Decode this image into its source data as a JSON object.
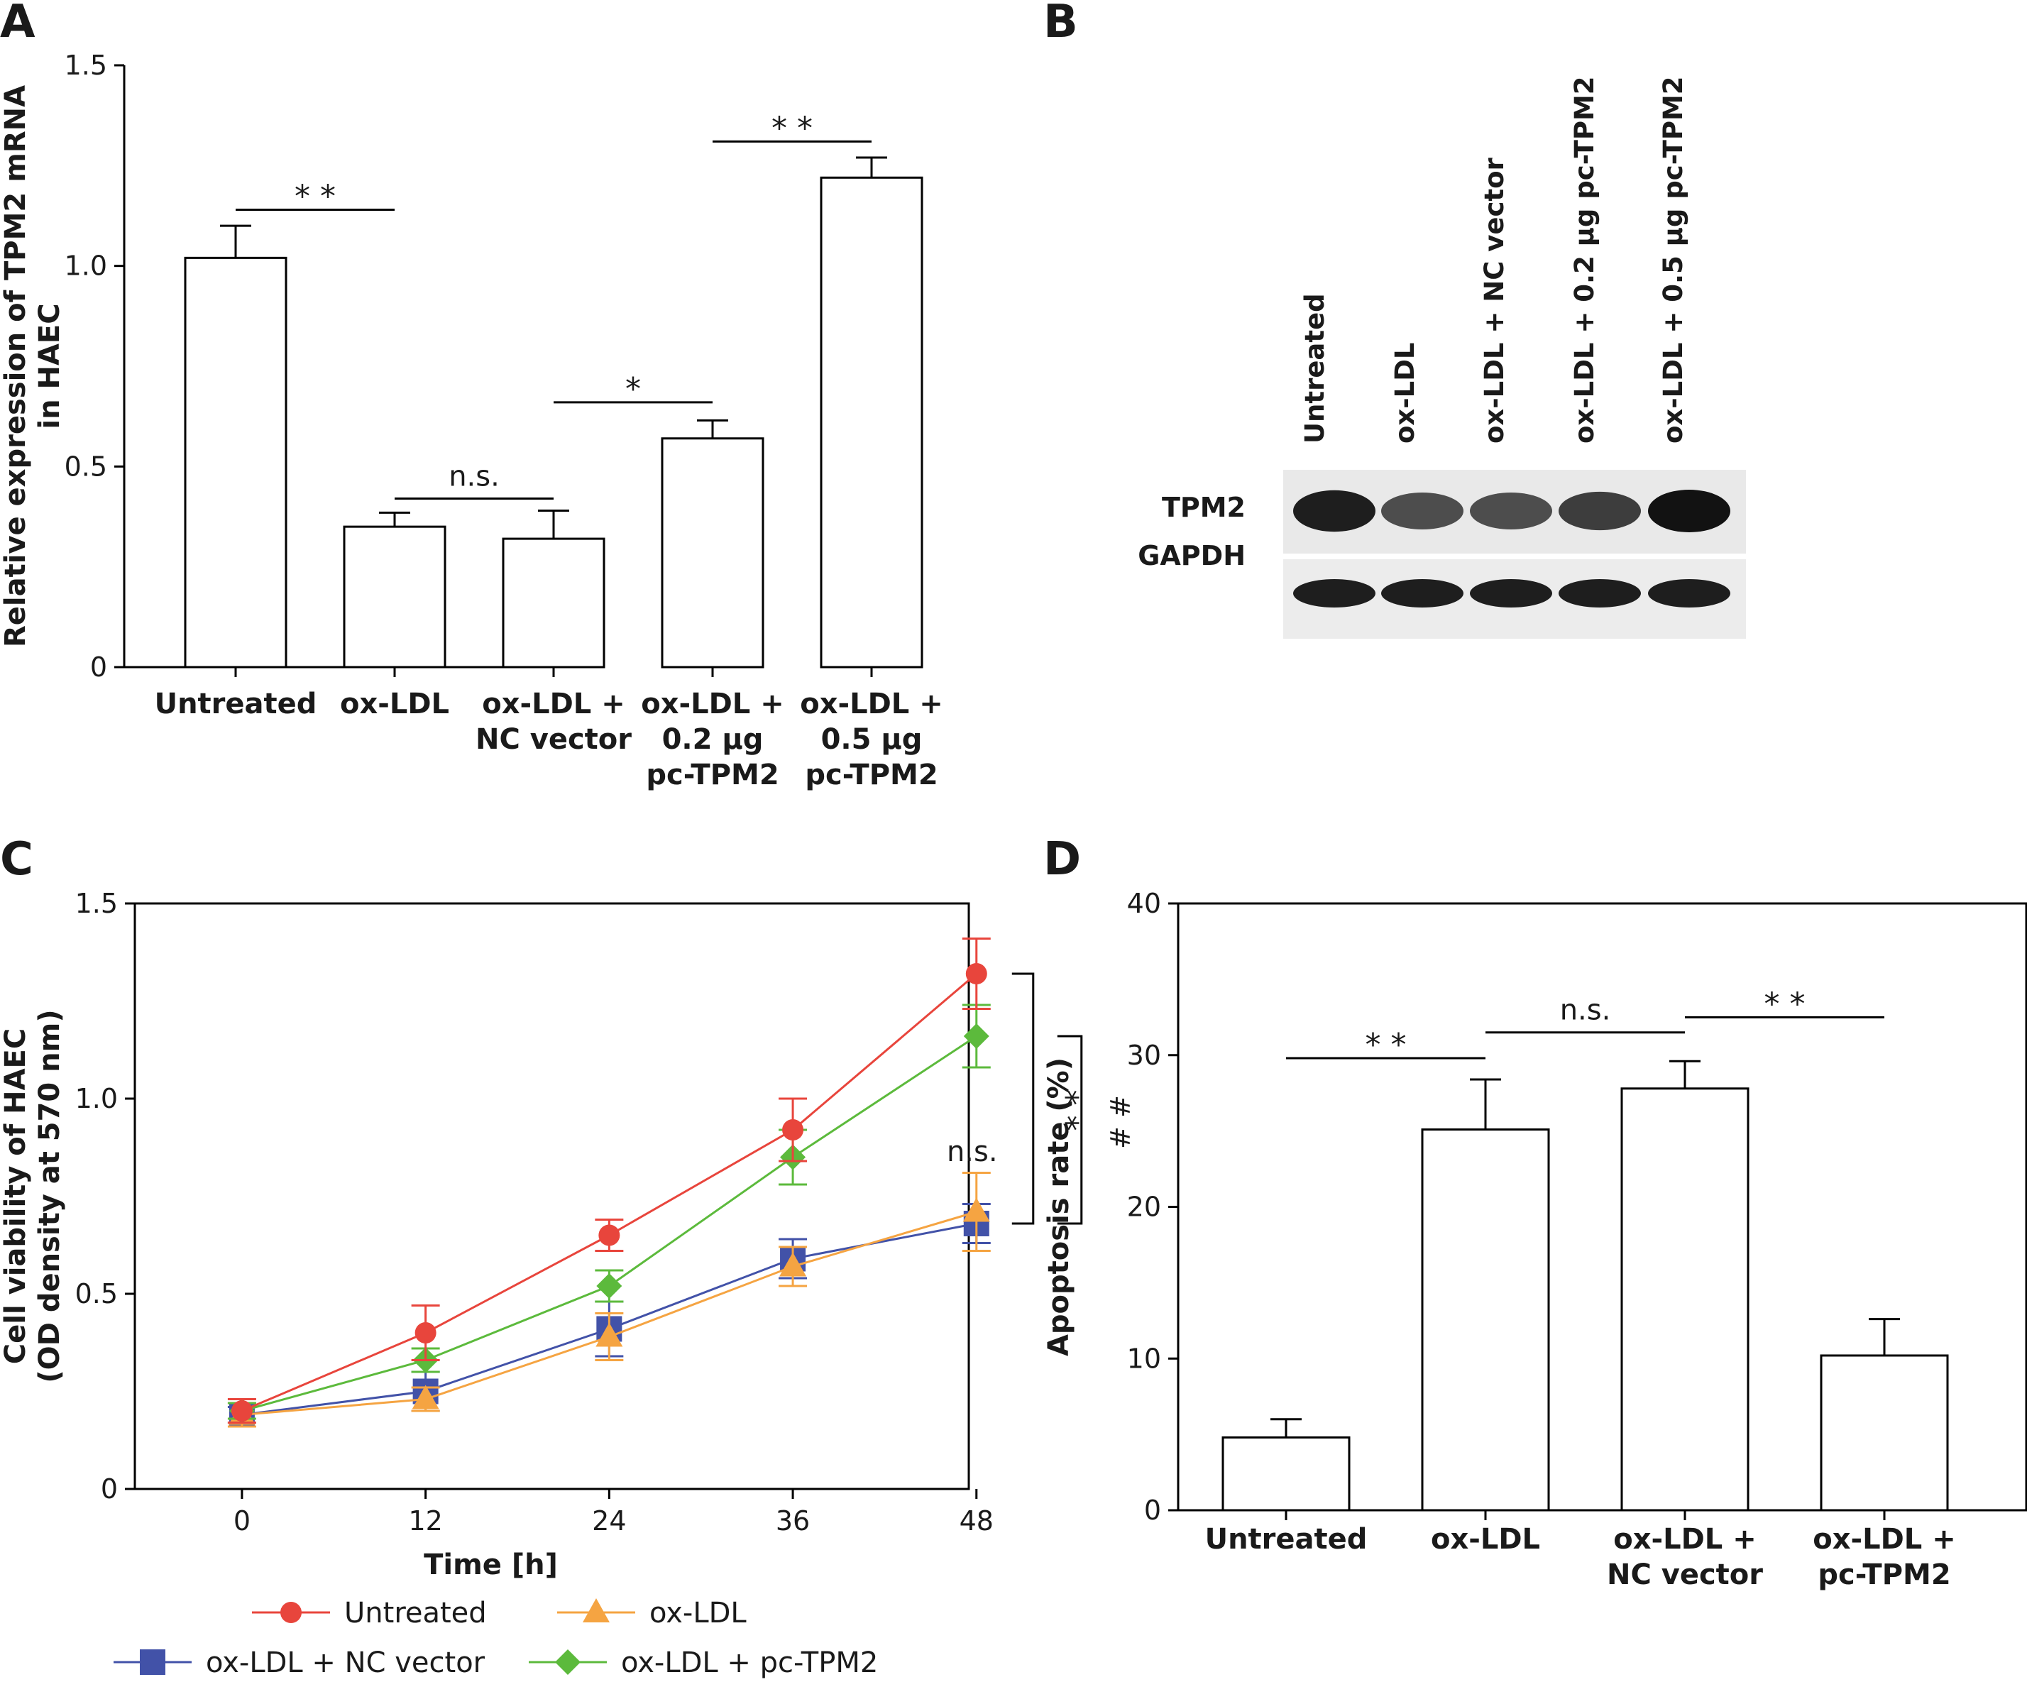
{
  "panels": {
    "A": {
      "letter": "A"
    },
    "B": {
      "letter": "B"
    },
    "C": {
      "letter": "C"
    },
    "D": {
      "letter": "D"
    }
  },
  "chart_data": [
    {
      "panel": "A",
      "type": "bar",
      "ylabel_lines": [
        "Relative expression of TPM2 mRNA",
        "in HAEC"
      ],
      "ylim": [
        0,
        1.5
      ],
      "yticks": [
        "0",
        "0.5",
        "1.0",
        "1.5"
      ],
      "ytick_values": [
        0,
        0.5,
        1.0,
        1.5
      ],
      "categories": [
        [
          "Untreated"
        ],
        [
          "ox-LDL"
        ],
        [
          "ox-LDL +",
          "NC vector"
        ],
        [
          "ox-LDL +",
          "0.2 µg",
          "pc-TPM2"
        ],
        [
          "ox-LDL +",
          "0.5 µg",
          "pc-TPM2"
        ]
      ],
      "values": [
        1.02,
        0.35,
        0.32,
        0.57,
        1.22
      ],
      "errors": [
        0.08,
        0.035,
        0.07,
        0.045,
        0.05
      ],
      "significance": [
        {
          "from": 0,
          "to": 1,
          "label": "* *",
          "level": 1.14
        },
        {
          "from": 1,
          "to": 2,
          "label": "n.s.",
          "level": 0.42
        },
        {
          "from": 2,
          "to": 3,
          "label": "*",
          "level": 0.66
        },
        {
          "from": 3,
          "to": 4,
          "label": "* *",
          "level": 1.31
        }
      ]
    },
    {
      "panel": "C",
      "type": "line",
      "xlabel": "Time [h]",
      "ylabel_lines": [
        "Cell viability of HAEC",
        "(OD density at 570 nm)"
      ],
      "x": [
        0,
        12,
        24,
        36,
        48
      ],
      "xticks": [
        "0",
        "12",
        "24",
        "36",
        "48"
      ],
      "xlim": [
        -7,
        47.5
      ],
      "yticks": [
        "0",
        "0.5",
        "1.0",
        "1.5"
      ],
      "ytick_values": [
        0,
        0.5,
        1.0,
        1.5
      ],
      "ylim": [
        0,
        1.5
      ],
      "series": [
        {
          "name": "Untreated",
          "marker": "circle",
          "color": "#e8453c",
          "values": [
            0.2,
            0.4,
            0.65,
            0.92,
            1.32
          ],
          "errors": [
            0.03,
            0.07,
            0.04,
            0.08,
            0.09
          ]
        },
        {
          "name": "ox-LDL",
          "marker": "triangle",
          "color": "#f5a442",
          "values": [
            0.19,
            0.23,
            0.39,
            0.57,
            0.71
          ],
          "errors": [
            0.03,
            0.03,
            0.06,
            0.05,
            0.1
          ]
        },
        {
          "name": "ox-LDL + NC vector",
          "marker": "square",
          "color": "#4252a8",
          "values": [
            0.19,
            0.25,
            0.41,
            0.59,
            0.68
          ],
          "errors": [
            0.02,
            0.05,
            0.07,
            0.05,
            0.05
          ]
        },
        {
          "name": "ox-LDL + pc-TPM2",
          "marker": "diamond",
          "color": "#5cba3c",
          "values": [
            0.2,
            0.33,
            0.52,
            0.85,
            1.16
          ],
          "errors": [
            0.02,
            0.03,
            0.04,
            0.07,
            0.08
          ]
        }
      ],
      "annotations": {
        "ns_label": "n.s.",
        "double_star": "* *",
        "hash": "#",
        "hash2": "#"
      }
    },
    {
      "panel": "D",
      "type": "bar",
      "ylabel": "Apoptosis rate (%)",
      "ylim": [
        0,
        40
      ],
      "yticks": [
        "0",
        "10",
        "20",
        "30",
        "40"
      ],
      "ytick_values": [
        0,
        10,
        20,
        30,
        40
      ],
      "categories": [
        [
          "Untreated"
        ],
        [
          "ox-LDL"
        ],
        [
          "ox-LDL +",
          "NC vector"
        ],
        [
          "ox-LDL +",
          "pc-TPM2"
        ]
      ],
      "values": [
        4.8,
        25.1,
        27.8,
        10.2
      ],
      "errors": [
        1.2,
        3.3,
        1.8,
        2.4
      ],
      "significance": [
        {
          "from": 0,
          "to": 1,
          "label": "* *",
          "level": 29.8
        },
        {
          "from": 1,
          "to": 2,
          "label": "n.s.",
          "level": 31.5
        },
        {
          "from": 2,
          "to": 3,
          "label": "* *",
          "level": 32.5
        }
      ]
    }
  ],
  "blot": {
    "lanes": [
      "Untreated",
      "ox-LDL",
      "ox-LDL + NC vector",
      "ox-LDL + 0.2 µg pc-TPM2",
      "ox-LDL + 0.5 µg pc-TPM2"
    ],
    "rows": [
      "TPM2",
      "GAPDH"
    ],
    "tpm2_intensity": [
      0.95,
      0.75,
      0.75,
      0.82,
      1.0
    ],
    "gapdh_intensity": [
      0.95,
      0.95,
      0.95,
      0.95,
      0.95
    ]
  }
}
